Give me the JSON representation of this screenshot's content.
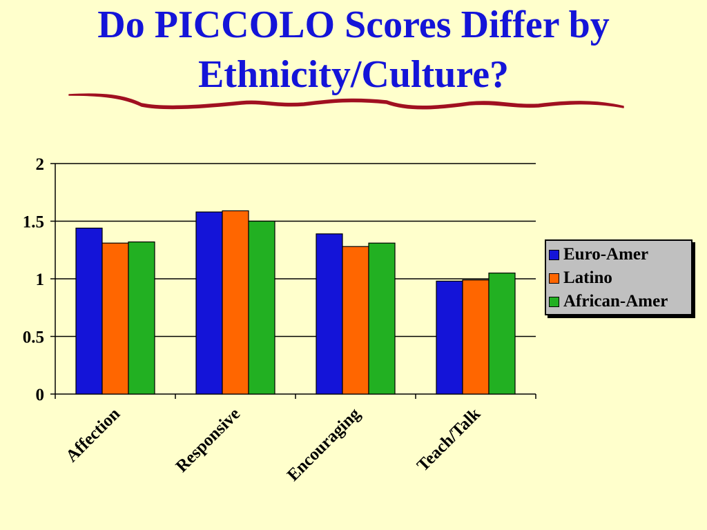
{
  "title": {
    "line1": "Do PICCOLO Scores Differ by",
    "line2": "Ethnicity/Culture?"
  },
  "colors": {
    "background": "#FFFFCC",
    "title": "#1414D8",
    "underline": "#A01020"
  },
  "chart_data": {
    "type": "bar",
    "categories": [
      "Affection",
      "Responsive",
      "Encouraging",
      "Teach/Talk"
    ],
    "series": [
      {
        "name": "Euro-Amer",
        "color": "#1414D8",
        "values": [
          1.44,
          1.58,
          1.39,
          0.98
        ]
      },
      {
        "name": "Latino",
        "color": "#FF6600",
        "values": [
          1.31,
          1.59,
          1.28,
          0.99
        ]
      },
      {
        "name": "African-Amer",
        "color": "#22B022",
        "values": [
          1.32,
          1.5,
          1.31,
          1.05
        ]
      }
    ],
    "ylim": [
      0,
      2
    ],
    "yticks": [
      "0",
      "0.5",
      "1",
      "1.5",
      "2"
    ],
    "grid": true,
    "legend": "right"
  }
}
